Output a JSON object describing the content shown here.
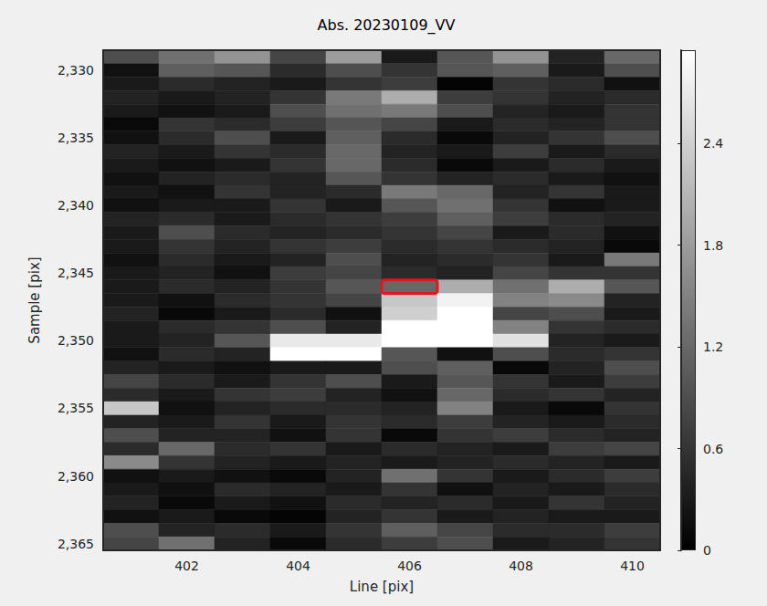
{
  "chart_data": {
    "type": "heatmap",
    "title": "Abs. 20230109_VV",
    "x_label": "Line [pix]",
    "y_label": "Sample [pix]",
    "color": "gray",
    "x": [
      401,
      402,
      403,
      404,
      405,
      406,
      407,
      408,
      409,
      410
    ],
    "y": [
      2329,
      2330,
      2331,
      2332,
      2333,
      2334,
      2335,
      2336,
      2337,
      2338,
      2339,
      2340,
      2341,
      2342,
      2343,
      2344,
      2345,
      2346,
      2347,
      2348,
      2349,
      2350,
      2351,
      2352,
      2353,
      2354,
      2355,
      2356,
      2357,
      2358,
      2359,
      2360,
      2361,
      2362,
      2363,
      2364,
      2365
    ],
    "values": [
      [
        0.9,
        1.3,
        1.7,
        0.8,
        1.8,
        0.3,
        1.0,
        1.7,
        0.4,
        1.2
      ],
      [
        0.2,
        1.1,
        1.0,
        0.5,
        0.9,
        0.6,
        1.0,
        1.1,
        0.3,
        0.9
      ],
      [
        0.3,
        0.5,
        0.4,
        0.3,
        0.6,
        0.7,
        0.05,
        0.6,
        0.5,
        0.2
      ],
      [
        0.4,
        0.3,
        0.4,
        0.6,
        1.4,
        2.0,
        0.7,
        0.6,
        0.4,
        0.5
      ],
      [
        0.3,
        0.2,
        0.3,
        0.9,
        1.3,
        1.4,
        0.9,
        0.4,
        0.3,
        0.6
      ],
      [
        0.1,
        0.6,
        0.5,
        0.7,
        1.0,
        0.8,
        0.3,
        0.5,
        0.4,
        0.6
      ],
      [
        0.2,
        0.5,
        0.9,
        0.3,
        1.1,
        0.5,
        0.1,
        0.4,
        0.6,
        0.9
      ],
      [
        0.4,
        0.3,
        0.6,
        0.5,
        1.2,
        0.4,
        0.3,
        0.7,
        0.3,
        0.5
      ],
      [
        0.3,
        0.2,
        0.3,
        0.6,
        1.2,
        0.5,
        0.1,
        0.3,
        0.5,
        0.3
      ],
      [
        0.2,
        0.4,
        0.5,
        0.4,
        1.0,
        0.6,
        0.4,
        0.5,
        0.3,
        0.2
      ],
      [
        0.3,
        0.2,
        0.6,
        0.4,
        0.5,
        1.4,
        1.2,
        0.4,
        0.6,
        0.3
      ],
      [
        0.2,
        0.3,
        0.3,
        0.6,
        0.3,
        1.0,
        1.3,
        0.6,
        0.2,
        0.3
      ],
      [
        0.4,
        0.5,
        0.3,
        0.5,
        0.6,
        0.7,
        1.1,
        0.7,
        0.5,
        0.4
      ],
      [
        0.3,
        0.9,
        0.5,
        0.4,
        0.5,
        0.6,
        0.8,
        0.3,
        0.5,
        0.2
      ],
      [
        0.3,
        0.6,
        0.4,
        0.6,
        0.7,
        0.5,
        0.6,
        0.5,
        0.4,
        0.1
      ],
      [
        0.2,
        0.5,
        0.3,
        0.4,
        0.9,
        0.4,
        0.5,
        0.6,
        0.3,
        1.4
      ],
      [
        0.3,
        0.4,
        0.2,
        0.7,
        0.8,
        0.5,
        0.4,
        0.8,
        0.6,
        0.6
      ],
      [
        0.3,
        0.5,
        0.4,
        0.6,
        1.0,
        1.2,
        2.0,
        1.3,
        2.0,
        1.0
      ],
      [
        0.3,
        0.2,
        0.5,
        0.6,
        0.8,
        2.3,
        2.8,
        1.5,
        1.6,
        0.4
      ],
      [
        0.4,
        0.1,
        0.3,
        0.5,
        0.2,
        2.4,
        3.2,
        0.8,
        0.9,
        0.3
      ],
      [
        0.3,
        0.5,
        0.6,
        0.9,
        0.4,
        3.2,
        3.2,
        1.5,
        0.6,
        0.5
      ],
      [
        0.3,
        0.4,
        1.0,
        2.7,
        2.7,
        3.2,
        3.2,
        2.6,
        0.4,
        0.3
      ],
      [
        0.2,
        0.5,
        0.4,
        3.2,
        3.2,
        1.0,
        0.2,
        0.9,
        0.5,
        0.6
      ],
      [
        0.4,
        0.3,
        0.2,
        0.3,
        0.3,
        0.9,
        1.1,
        0.1,
        0.4,
        0.9
      ],
      [
        0.8,
        0.5,
        0.3,
        0.6,
        0.9,
        0.3,
        1.0,
        0.6,
        0.3,
        0.7
      ],
      [
        0.5,
        0.3,
        0.6,
        0.7,
        0.4,
        0.2,
        1.2,
        0.5,
        0.6,
        0.4
      ],
      [
        2.3,
        0.2,
        0.4,
        0.5,
        0.5,
        0.4,
        1.5,
        0.3,
        0.1,
        0.6
      ],
      [
        0.4,
        0.3,
        0.6,
        0.3,
        0.6,
        0.5,
        0.7,
        0.4,
        0.3,
        0.5
      ],
      [
        0.9,
        0.4,
        0.4,
        0.2,
        0.6,
        0.1,
        0.6,
        0.7,
        0.5,
        0.4
      ],
      [
        0.5,
        1.2,
        0.5,
        0.6,
        0.3,
        0.5,
        0.4,
        0.3,
        0.7,
        0.8
      ],
      [
        1.6,
        0.6,
        0.4,
        0.3,
        0.4,
        0.3,
        0.4,
        0.5,
        0.4,
        0.3
      ],
      [
        0.2,
        0.3,
        0.2,
        0.1,
        0.4,
        1.3,
        0.6,
        0.3,
        0.5,
        0.7
      ],
      [
        0.3,
        0.2,
        0.5,
        0.4,
        0.3,
        0.6,
        0.2,
        0.4,
        0.3,
        0.5
      ],
      [
        0.4,
        0.1,
        0.3,
        0.2,
        0.5,
        0.4,
        0.5,
        0.3,
        0.6,
        0.4
      ],
      [
        0.2,
        0.3,
        0.1,
        0.05,
        0.4,
        0.6,
        0.3,
        0.4,
        0.3,
        0.3
      ],
      [
        0.9,
        0.4,
        0.5,
        0.3,
        0.6,
        1.1,
        0.8,
        0.5,
        0.5,
        0.7
      ],
      [
        0.8,
        1.3,
        0.4,
        0.1,
        0.5,
        0.7,
        0.9,
        0.3,
        0.4,
        0.6
      ]
    ],
    "xlim": [
      400.5,
      410.5
    ],
    "xticks": [
      402,
      404,
      406,
      408,
      410
    ],
    "ylim": [
      2328.5,
      2365.5
    ],
    "yticks": [
      2330,
      2335,
      2340,
      2345,
      2350,
      2355,
      2360,
      2365
    ],
    "colorbar": {
      "range": [
        0,
        2.95
      ],
      "ticks": [
        0,
        0.6,
        1.2,
        1.8,
        2.4
      ]
    },
    "highlight": {
      "x": 406,
      "y": 2346,
      "color": "#e8141c"
    }
  }
}
